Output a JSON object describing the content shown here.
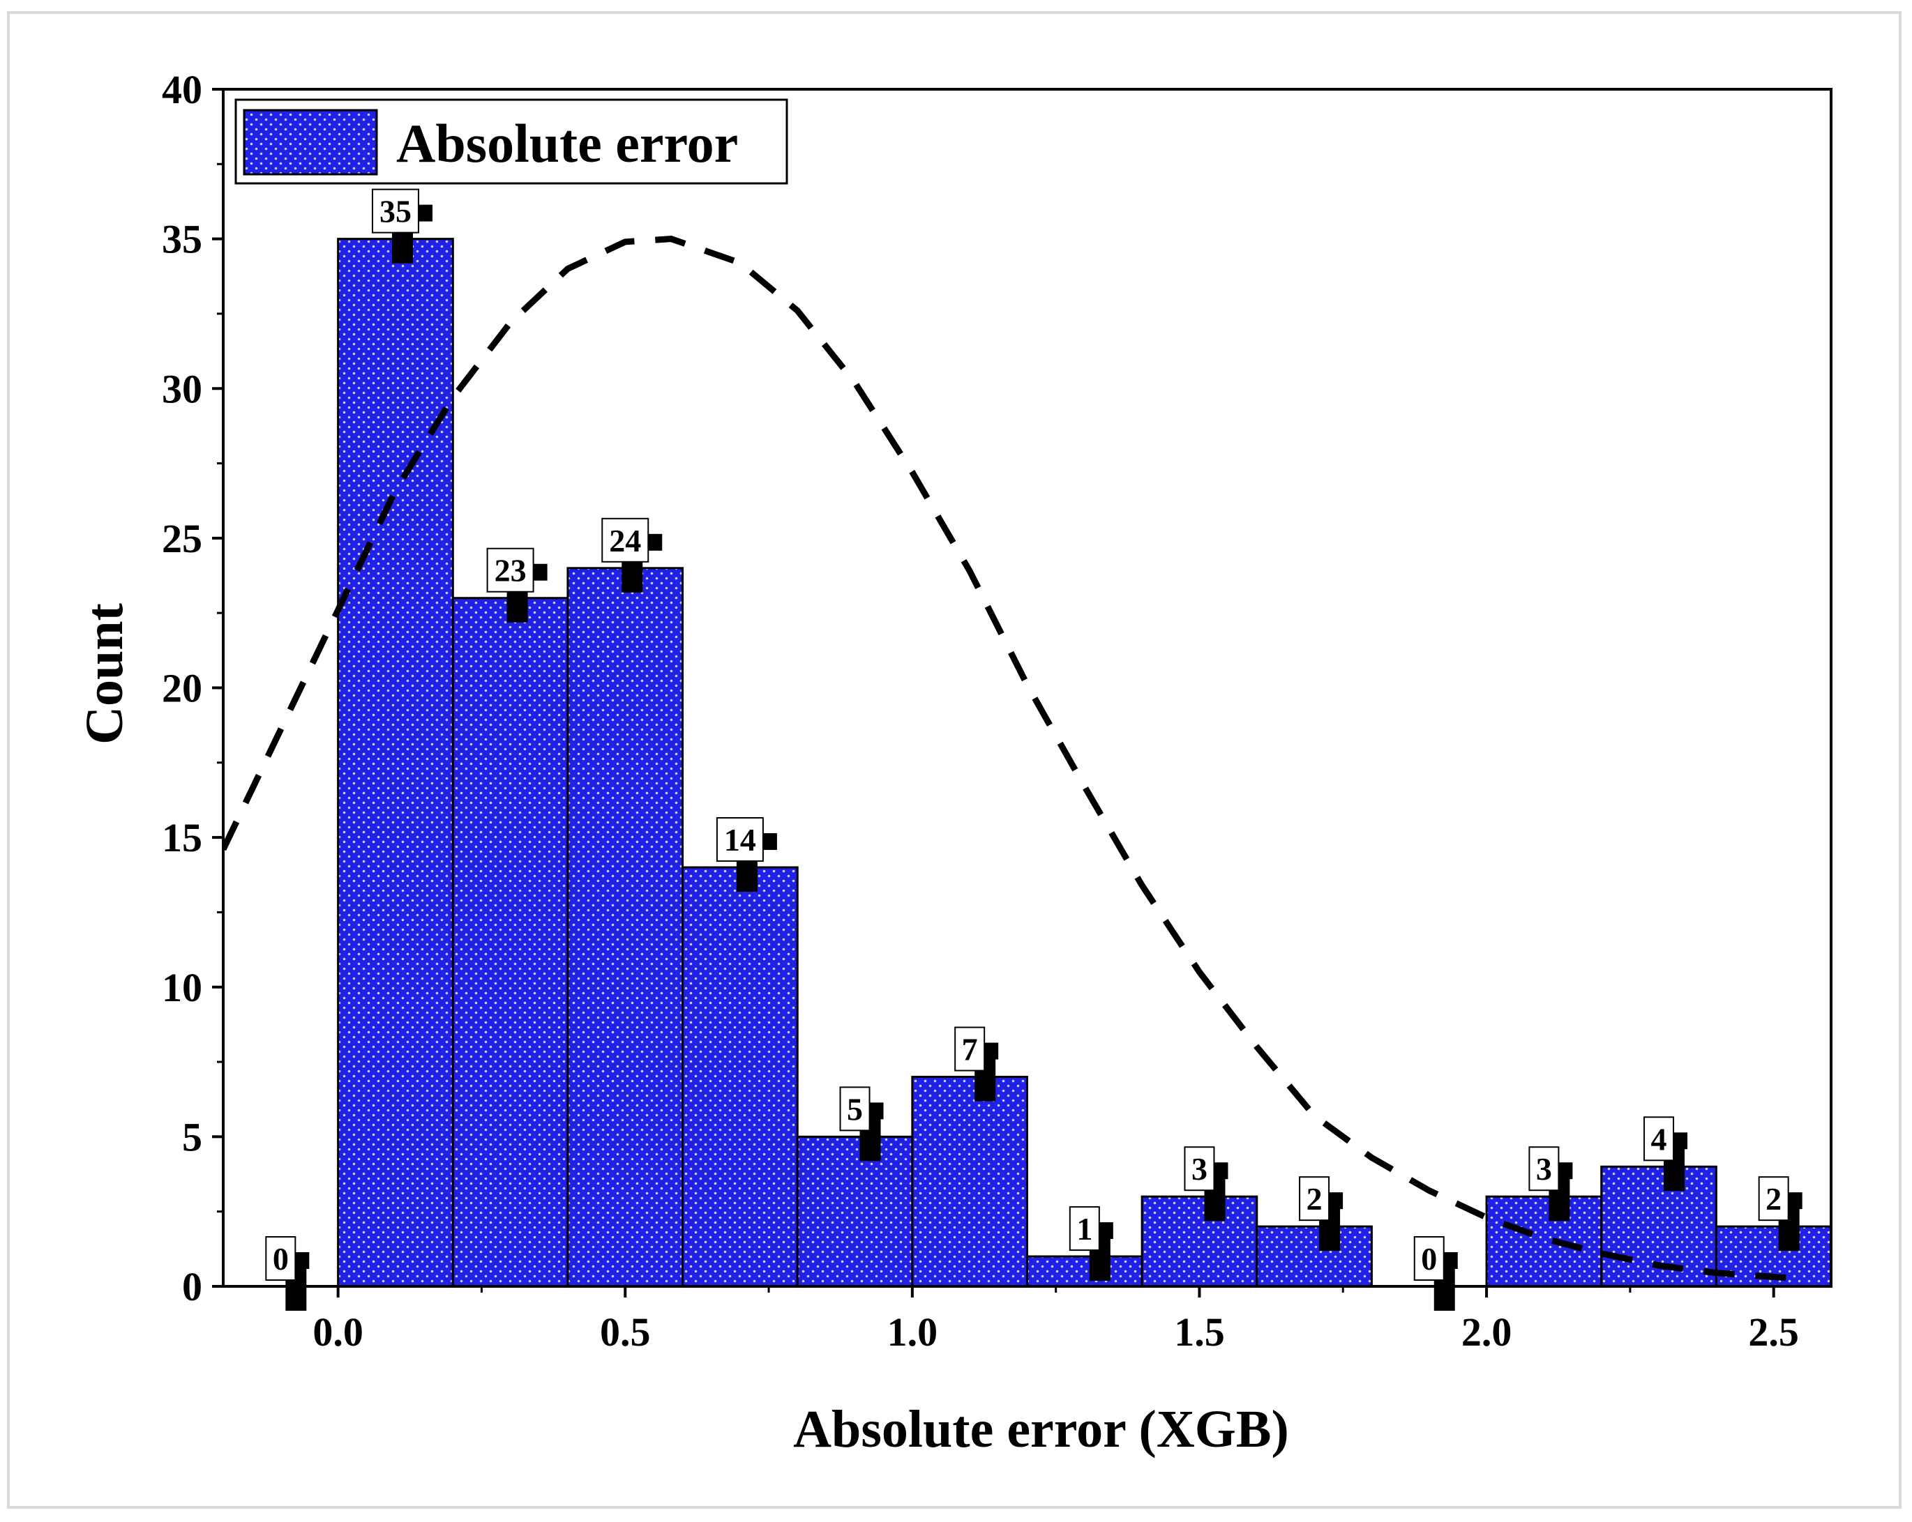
{
  "chart_data": {
    "type": "bar",
    "subtype": "histogram",
    "bins": [
      [
        -0.2,
        0.0
      ],
      [
        0.0,
        0.2
      ],
      [
        0.2,
        0.4
      ],
      [
        0.4,
        0.6
      ],
      [
        0.6,
        0.8
      ],
      [
        0.8,
        1.0
      ],
      [
        1.0,
        1.2
      ],
      [
        1.2,
        1.4
      ],
      [
        1.4,
        1.6
      ],
      [
        1.6,
        1.8
      ],
      [
        1.8,
        2.0
      ],
      [
        2.0,
        2.2
      ],
      [
        2.2,
        2.4
      ],
      [
        2.4,
        2.6
      ]
    ],
    "values": [
      0,
      35,
      23,
      24,
      14,
      5,
      7,
      1,
      3,
      2,
      0,
      3,
      4,
      2
    ],
    "data_labels": [
      "0",
      "35",
      "23",
      "24",
      "14",
      "5",
      "7",
      "1",
      "3",
      "2",
      "0",
      "3",
      "4",
      "2"
    ],
    "xlabel": "Absolute error (XGB)",
    "ylabel": "Count",
    "xlim": [
      -0.2,
      2.6
    ],
    "ylim": [
      0,
      40
    ],
    "x_ticks": [
      "0.0",
      "0.5",
      "1.0",
      "1.5",
      "2.0",
      "2.5"
    ],
    "x_tick_values": [
      0.0,
      0.5,
      1.0,
      1.5,
      2.0,
      2.5
    ],
    "y_ticks": [
      "0",
      "5",
      "10",
      "15",
      "20",
      "25",
      "30",
      "35",
      "40"
    ],
    "y_tick_values": [
      0,
      5,
      10,
      15,
      20,
      25,
      30,
      35,
      40
    ],
    "legend": {
      "label": "Absolute error",
      "position": "top-left"
    },
    "fit_curve": {
      "style": "dashed",
      "color": "#000000",
      "points": [
        [
          -0.2,
          14.6
        ],
        [
          -0.1,
          18.6
        ],
        [
          0.0,
          22.6
        ],
        [
          0.1,
          26.6
        ],
        [
          0.2,
          29.7
        ],
        [
          0.3,
          32.2
        ],
        [
          0.4,
          34.0
        ],
        [
          0.5,
          34.9
        ],
        [
          0.58,
          35.0
        ],
        [
          0.7,
          34.2
        ],
        [
          0.8,
          32.6
        ],
        [
          0.9,
          30.2
        ],
        [
          1.0,
          27.2
        ],
        [
          1.1,
          23.9
        ],
        [
          1.2,
          20.1
        ],
        [
          1.3,
          16.7
        ],
        [
          1.4,
          13.4
        ],
        [
          1.5,
          10.5
        ],
        [
          1.6,
          8.0
        ],
        [
          1.7,
          5.7
        ],
        [
          1.8,
          4.3
        ],
        [
          1.9,
          3.2
        ],
        [
          2.0,
          2.3
        ],
        [
          2.1,
          1.6
        ],
        [
          2.2,
          1.1
        ],
        [
          2.3,
          0.7
        ],
        [
          2.4,
          0.45
        ],
        [
          2.55,
          0.25
        ]
      ]
    },
    "colors": {
      "bar_fill": "#2020e6",
      "bar_fill_highlight": "#3a3ae8",
      "bar_stroke": "#000000",
      "dot_color": "#c8d2ff"
    },
    "grid": false
  }
}
